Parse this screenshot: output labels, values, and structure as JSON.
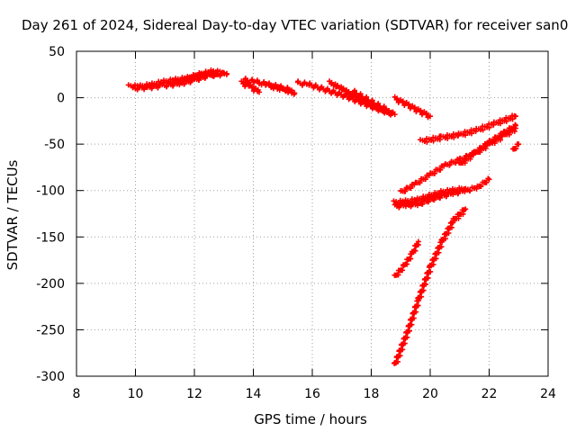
{
  "chart_data": {
    "type": "scatter",
    "title": "Day 261 of 2024, Sidereal Day-to-day VTEC variation (SDTVAR) for receiver san0",
    "xlabel": "GPS time / hours",
    "ylabel": "SDTVAR / TECUs",
    "xlim": [
      8,
      24
    ],
    "ylim": [
      -300,
      50
    ],
    "xticks": [
      8,
      10,
      12,
      14,
      16,
      18,
      20,
      22,
      24
    ],
    "yticks": [
      -300,
      -250,
      -200,
      -150,
      -100,
      -50,
      0,
      50
    ],
    "grid": true,
    "marker_color": "#ff0000",
    "series": [
      {
        "x": [
          9.8,
          10.2,
          10.6,
          11.0,
          11.4,
          11.8,
          12.2,
          12.6,
          13.0
        ],
        "y": [
          12,
          12,
          14,
          17,
          19,
          21,
          25,
          28,
          27
        ]
      },
      {
        "x": [
          9.9,
          10.4,
          10.9,
          11.5,
          12.0,
          12.5,
          13.1
        ],
        "y": [
          10,
          11,
          13,
          15,
          19,
          24,
          26
        ]
      },
      {
        "x": [
          11.2,
          11.6,
          12.0,
          12.4,
          12.8
        ],
        "y": [
          15,
          18,
          22,
          25,
          26
        ]
      },
      {
        "x": [
          13.7,
          14.1,
          14.5,
          14.9,
          15.3
        ],
        "y": [
          19,
          17,
          14,
          11,
          8
        ]
      },
      {
        "x": [
          13.6,
          13.9,
          14.2
        ],
        "y": [
          16,
          12,
          6
        ]
      },
      {
        "x": [
          14.5,
          15.0,
          15.4
        ],
        "y": [
          13,
          9,
          5
        ]
      },
      {
        "x": [
          15.5,
          15.9,
          16.3,
          16.7,
          17.1,
          17.5,
          17.9,
          18.3,
          18.8
        ],
        "y": [
          16,
          14,
          10,
          6,
          2,
          -3,
          -8,
          -13,
          -18
        ]
      },
      {
        "x": [
          16.6,
          17.0,
          17.4,
          17.8,
          18.2,
          18.7
        ],
        "y": [
          16,
          10,
          2,
          -5,
          -11,
          -17
        ]
      },
      {
        "x": [
          17.4,
          17.8,
          18.2,
          18.6
        ],
        "y": [
          6,
          -1,
          -8,
          -14
        ]
      },
      {
        "x": [
          18.8,
          19.2,
          19.6,
          20.0
        ],
        "y": [
          -1,
          -7,
          -14,
          -20
        ]
      },
      {
        "x": [
          19.7,
          20.4,
          21.0,
          21.6,
          22.2,
          22.9
        ],
        "y": [
          -47,
          -43,
          -40,
          -35,
          -28,
          -20
        ]
      },
      {
        "x": [
          19.0,
          19.5,
          20.0,
          20.5,
          21.0,
          21.5,
          22.0,
          22.5,
          22.9
        ],
        "y": [
          -102,
          -93,
          -83,
          -73,
          -67,
          -60,
          -48,
          -38,
          -30
        ]
      },
      {
        "x": [
          21.0,
          21.5,
          22.0,
          22.5,
          22.9
        ],
        "y": [
          -72,
          -60,
          -50,
          -41,
          -33
        ]
      },
      {
        "x": [
          22.8,
          23.0
        ],
        "y": [
          -57,
          -50
        ]
      },
      {
        "x": [
          18.8,
          19.2,
          19.6,
          20.0,
          20.4,
          20.8,
          21.2,
          21.6,
          22.0
        ],
        "y": [
          -117,
          -116,
          -115,
          -110,
          -106,
          -103,
          -100,
          -97,
          -88
        ]
      },
      {
        "x": [
          18.8,
          19.2,
          19.6,
          20.0,
          20.4,
          20.8,
          21.2
        ],
        "y": [
          -113,
          -112,
          -110,
          -106,
          -102,
          -100,
          -98
        ]
      },
      {
        "x": [
          18.8,
          19.1,
          19.4,
          19.6
        ],
        "y": [
          -193,
          -182,
          -168,
          -155
        ]
      },
      {
        "x": [
          18.8,
          19.2,
          19.6,
          20.0,
          20.4,
          20.8,
          21.2
        ],
        "y": [
          -288,
          -255,
          -218,
          -183,
          -155,
          -132,
          -120
        ]
      }
    ]
  }
}
